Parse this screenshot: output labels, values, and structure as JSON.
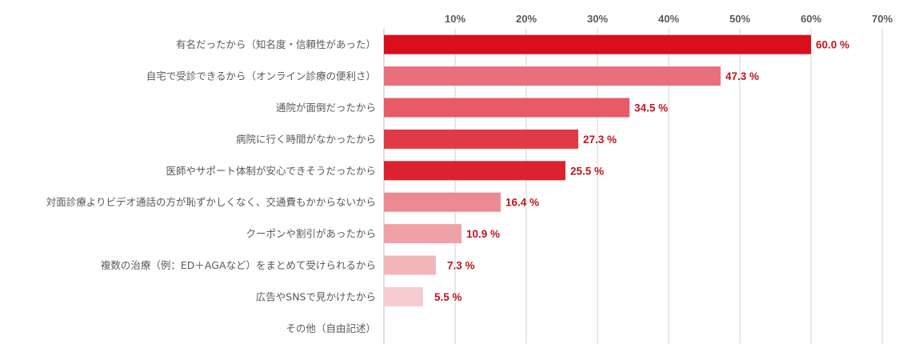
{
  "chart_data": {
    "type": "bar",
    "orientation": "horizontal",
    "xlim": [
      0,
      70
    ],
    "ticks": [
      "10%",
      "20%",
      "30%",
      "40%",
      "50%",
      "60%",
      "70%"
    ],
    "grid": true,
    "categories": [
      "有名だったから（知名度・信頼性があった）",
      "自宅で受診できるから（オンライン診療の便利さ）",
      "通院が面倒だったから",
      "病院に行く時間がなかったから",
      "医師やサポート体制が安心できそうだったから",
      "対面診療よりビデオ通話の方が恥ずかしくなく、交通費もかからないから",
      "クーポンや割引があったから",
      "複数の治療（例：ED＋AGAなど）をまとめて受けられるから",
      "広告やSNSで見かけたから",
      "その他（自由記述）"
    ],
    "values": [
      60.0,
      47.3,
      34.5,
      27.3,
      25.5,
      16.4,
      10.9,
      7.3,
      5.5,
      null
    ],
    "value_labels": [
      "60.0 %",
      "47.3 %",
      "34.5 %",
      "27.3 %",
      "25.5 %",
      "16.4 %",
      "10.9 %",
      "7.3 %",
      "5.5 %",
      ""
    ],
    "colors": [
      "#d90f1e",
      "#e8707a",
      "#e85a65",
      "#e03a46",
      "#dc2230",
      "#ec8a92",
      "#efa1a8",
      "#f2b6ba",
      "#f6ccd0",
      "#ffffff"
    ],
    "label_color": "#c0161f"
  }
}
